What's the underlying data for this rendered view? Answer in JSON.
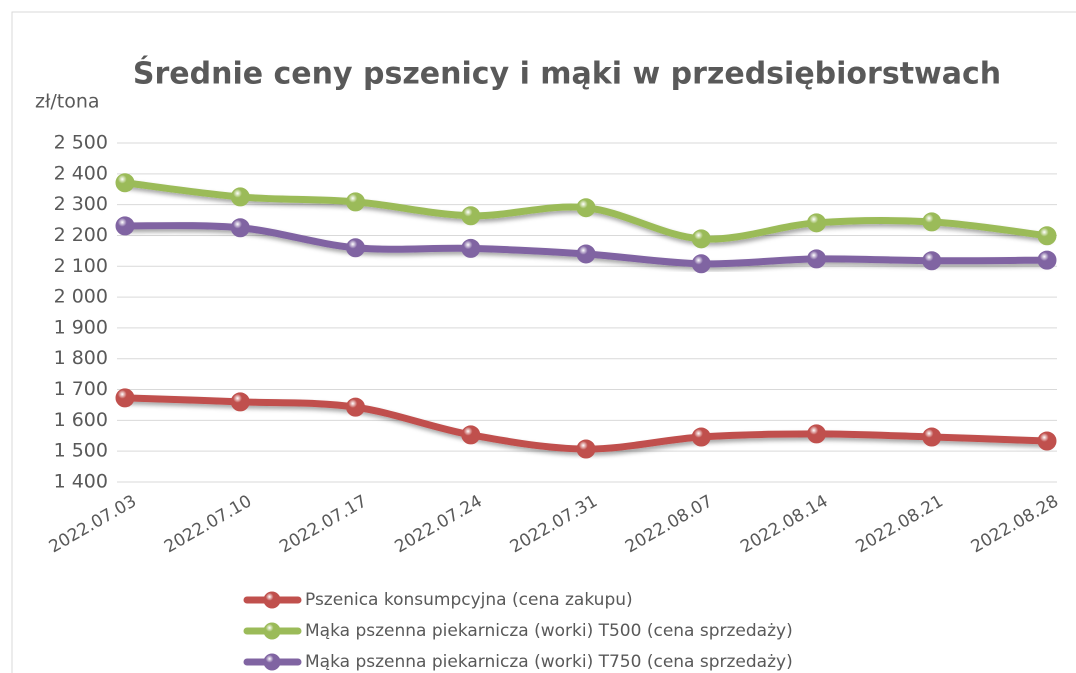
{
  "chart_data": {
    "type": "line",
    "title": "Średnie ceny pszenicy i mąki w przedsiębiorstwach",
    "y_label": "zł/tona",
    "categories": [
      "2022.07.03",
      "2022.07.10",
      "2022.07.17",
      "2022.07.24",
      "2022.07.31",
      "2022.08.07",
      "2022.08.14",
      "2022.08.21",
      "2022.08.28"
    ],
    "series": [
      {
        "name": "Pszenica konsumpcyjna (cena zakupu)",
        "color": "#c0504d",
        "values": [
          1673,
          1660,
          1643,
          1553,
          1507,
          1546,
          1556,
          1546,
          1533
        ]
      },
      {
        "name": "Mąka pszenna piekarnicza (worki) T500 (cena sprzedaży)",
        "color": "#9bbb59",
        "values": [
          2371,
          2325,
          2309,
          2264,
          2290,
          2189,
          2241,
          2244,
          2199
        ]
      },
      {
        "name": "Mąka pszenna piekarnicza (worki) T750 (cena sprzedaży)",
        "color": "#8064a2",
        "values": [
          2231,
          2225,
          2160,
          2158,
          2140,
          2108,
          2124,
          2118,
          2120
        ]
      }
    ],
    "ylim": [
      1400,
      2500
    ],
    "yticks": [
      {
        "value": 1400,
        "label": "1 400"
      },
      {
        "value": 1500,
        "label": "1 500"
      },
      {
        "value": 1600,
        "label": "1 600"
      },
      {
        "value": 1700,
        "label": "1 700"
      },
      {
        "value": 1800,
        "label": "1 800"
      },
      {
        "value": 1900,
        "label": "1 900"
      },
      {
        "value": 2000,
        "label": "2 000"
      },
      {
        "value": 2100,
        "label": "2 100"
      },
      {
        "value": 2200,
        "label": "2 200"
      },
      {
        "value": 2300,
        "label": "2 300"
      },
      {
        "value": 2400,
        "label": "2 400"
      },
      {
        "value": 2500,
        "label": "2 500"
      }
    ],
    "grid": true,
    "smooth": true,
    "legend": "bottom"
  }
}
